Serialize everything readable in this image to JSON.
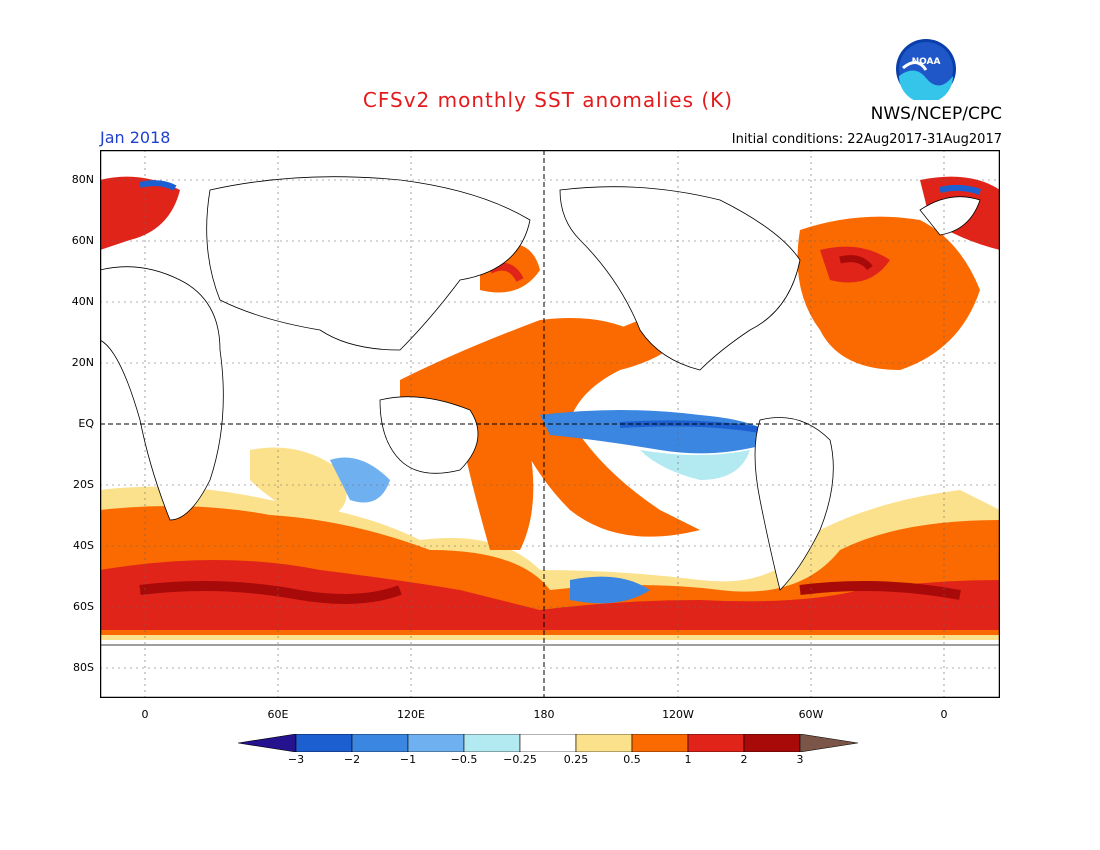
{
  "header": {
    "title": "CFSv2 monthly SST anomalies (K)",
    "org": "NWS/NCEP/CPC",
    "month": "Jan 2018",
    "initial_conditions": "Initial conditions: 22Aug2017-31Aug2017",
    "logo_text": "NOAA"
  },
  "map": {
    "x_labels": [
      "0",
      "60E",
      "120E",
      "180",
      "120W",
      "60W",
      "0"
    ],
    "y_labels": [
      "80N",
      "60N",
      "40N",
      "20N",
      "EQ",
      "20S",
      "40S",
      "60S",
      "80S"
    ]
  },
  "colorbar": {
    "labels": [
      "−3",
      "−2",
      "−1",
      "−0.5",
      "−0.25",
      "0.25",
      "0.5",
      "1",
      "2",
      "3"
    ],
    "colors": [
      "#24128e",
      "#1c5fd0",
      "#3b86e0",
      "#6fb0f0",
      "#b3eaf2",
      "#ffffff",
      "#fbe18c",
      "#fa6a00",
      "#e0241a",
      "#a80a0a",
      "#7b5648"
    ]
  }
}
